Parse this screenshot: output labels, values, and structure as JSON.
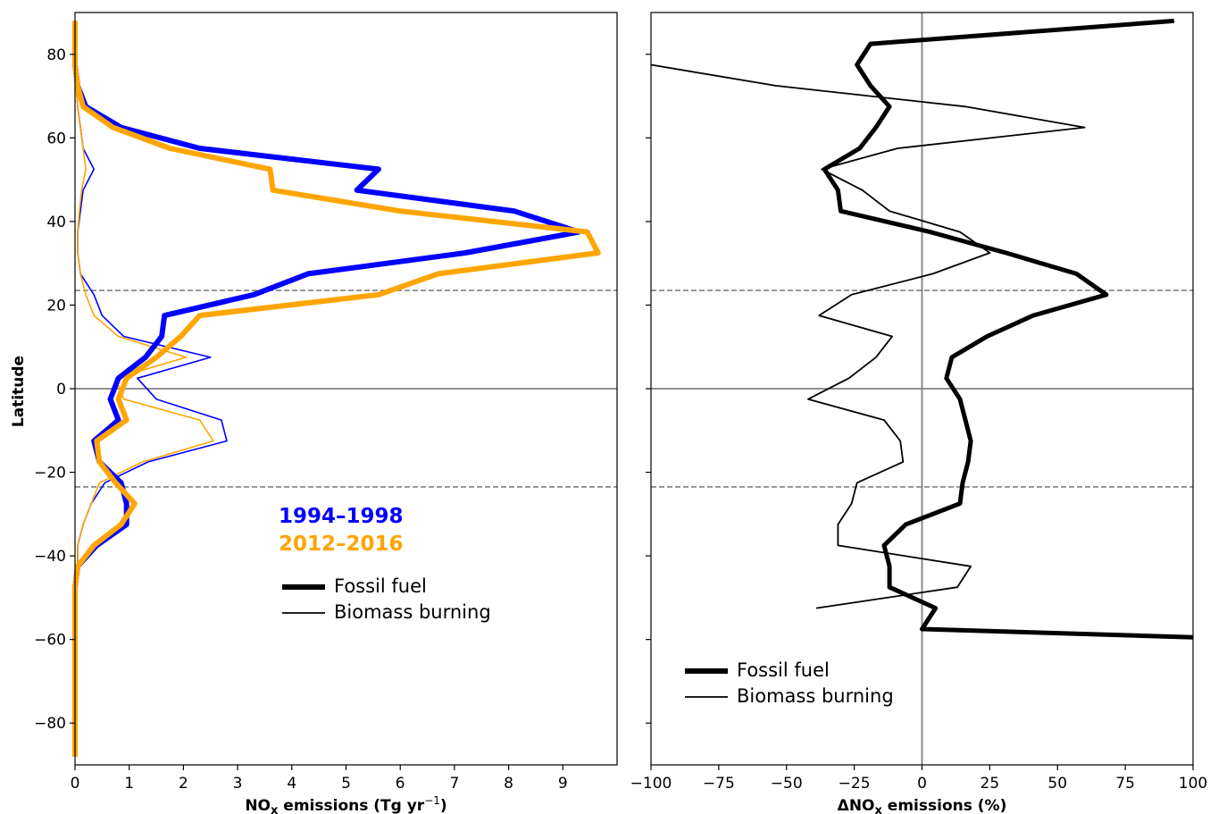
{
  "chart_data": [
    {
      "type": "line",
      "xlabel": "NO",
      "xlabel_sub": "x",
      "xlabel_rest": " emissions (Tg yr",
      "xlabel_sup": "−1",
      "xlabel_end": ")",
      "ylabel": "Latitude",
      "xlim": [
        0,
        10
      ],
      "ylim": [
        -90,
        90
      ],
      "xticks": [
        0,
        1,
        2,
        3,
        4,
        5,
        6,
        7,
        8,
        9
      ],
      "xtick_labels": [
        "0",
        "1",
        "2",
        "3",
        "4",
        "5",
        "6",
        "7",
        "8",
        "9"
      ],
      "yticks": [
        80,
        60,
        40,
        20,
        0,
        -20,
        -40,
        -60,
        -80
      ],
      "ytick_labels": [
        "80",
        "60",
        "40",
        "20",
        "0",
        "−20",
        "−40",
        "−60",
        "−80"
      ],
      "reference_lines": [
        {
          "y": 23.5,
          "style": "dashed"
        },
        {
          "y": -23.5,
          "style": "dashed"
        },
        {
          "y": 0,
          "style": "solid"
        }
      ],
      "period_labels": [
        {
          "text": "1994–1998",
          "color": "#0000ff"
        },
        {
          "text": "2012–2016",
          "color": "#ffa500"
        }
      ],
      "legend": [
        {
          "label": "Fossil fuel",
          "style": "thick"
        },
        {
          "label": "Biomass burning",
          "style": "thin"
        }
      ],
      "series": [
        {
          "period": "1994–1998",
          "sector": "Fossil fuel",
          "color": "#0000ff",
          "width": 6,
          "lat": [
            88,
            82.5,
            77.5,
            72.5,
            67.5,
            62.5,
            57.5,
            52.5,
            47.5,
            42.5,
            37.5,
            32.5,
            27.5,
            22.5,
            17.5,
            12.5,
            7.5,
            2.5,
            -2.5,
            -7.5,
            -12.5,
            -17.5,
            -22.5,
            -27.5,
            -32.5,
            -37.5,
            -42.5,
            -47.5,
            -52.5,
            -57.5,
            -62.5,
            -67.5,
            -72.5,
            -77.5,
            -82.5,
            -88
          ],
          "x": [
            0,
            0,
            0,
            0.05,
            0.2,
            0.85,
            2.3,
            5.6,
            5.2,
            8.1,
            9.3,
            7.2,
            4.3,
            3.3,
            1.65,
            1.6,
            1.3,
            0.8,
            0.65,
            0.8,
            0.35,
            0.45,
            0.85,
            0.95,
            0.95,
            0.4,
            0.05,
            0,
            0,
            0,
            0,
            0,
            0,
            0,
            0,
            0
          ]
        },
        {
          "period": "2012–2016",
          "sector": "Fossil fuel",
          "color": "#ffa500",
          "width": 6,
          "lat": [
            88,
            82.5,
            77.5,
            72.5,
            67.5,
            62.5,
            57.5,
            52.5,
            47.5,
            42.5,
            37.5,
            32.5,
            27.5,
            22.5,
            17.5,
            12.5,
            7.5,
            2.5,
            -2.5,
            -7.5,
            -12.5,
            -17.5,
            -22.5,
            -27.5,
            -32.5,
            -37.5,
            -42.5,
            -47.5,
            -52.5,
            -57.5,
            -62.5,
            -67.5,
            -72.5,
            -77.5,
            -82.5,
            -88
          ],
          "x": [
            0,
            0,
            0,
            0.05,
            0.15,
            0.7,
            1.75,
            3.6,
            3.65,
            6.0,
            9.45,
            9.65,
            6.7,
            5.6,
            2.3,
            1.95,
            1.5,
            0.95,
            0.8,
            0.95,
            0.4,
            0.45,
            0.75,
            1.1,
            0.85,
            0.35,
            0.05,
            0,
            0,
            0,
            0,
            0,
            0,
            0,
            0,
            0
          ]
        },
        {
          "period": "1994–1998",
          "sector": "Biomass burning",
          "color": "#0000ff",
          "width": 1.6,
          "lat": [
            72.5,
            67.5,
            62.5,
            57.5,
            52.5,
            47.5,
            42.5,
            37.5,
            32.5,
            27.5,
            22.5,
            17.5,
            12.5,
            7.5,
            2.5,
            -2.5,
            -7.5,
            -12.5,
            -17.5,
            -22.5,
            -27.5,
            -32.5,
            -37.5,
            -42.5,
            -47.5,
            -52.5
          ],
          "x": [
            0.02,
            0.05,
            0.1,
            0.15,
            0.35,
            0.15,
            0.1,
            0.05,
            0.05,
            0.1,
            0.35,
            0.5,
            0.9,
            2.5,
            1.15,
            1.5,
            2.7,
            2.8,
            1.35,
            0.55,
            0.3,
            0.15,
            0.05,
            0.05,
            0.02,
            0.01
          ]
        },
        {
          "period": "2012–2016",
          "sector": "Biomass burning",
          "color": "#ffa500",
          "width": 1.6,
          "lat": [
            72.5,
            67.5,
            62.5,
            57.5,
            52.5,
            47.5,
            42.5,
            37.5,
            32.5,
            27.5,
            22.5,
            17.5,
            12.5,
            7.5,
            2.5,
            -2.5,
            -7.5,
            -12.5,
            -17.5,
            -22.5,
            -27.5,
            -32.5,
            -37.5,
            -42.5,
            -47.5,
            -52.5
          ],
          "x": [
            0.02,
            0.05,
            0.1,
            0.15,
            0.2,
            0.12,
            0.08,
            0.05,
            0.05,
            0.1,
            0.2,
            0.35,
            0.8,
            2.05,
            0.75,
            0.9,
            2.3,
            2.55,
            1.25,
            0.45,
            0.3,
            0.15,
            0.05,
            0.05,
            0.02,
            0.01
          ]
        }
      ]
    },
    {
      "type": "line",
      "xlabel": "ΔNO",
      "xlabel_sub": "x",
      "xlabel_rest": " emissions (%)",
      "xlim": [
        -100,
        100
      ],
      "ylim": [
        -90,
        90
      ],
      "xticks": [
        -100,
        -75,
        -50,
        -25,
        0,
        25,
        50,
        75,
        100
      ],
      "xtick_labels": [
        "−100",
        "−75",
        "−50",
        "−25",
        "0",
        "25",
        "50",
        "75",
        "100"
      ],
      "reference_lines": [
        {
          "y": 23.5,
          "style": "dashed"
        },
        {
          "y": -23.5,
          "style": "dashed"
        },
        {
          "y": 0,
          "style": "solid"
        },
        {
          "x": 0,
          "style": "solid"
        }
      ],
      "legend": [
        {
          "label": "Fossil fuel",
          "style": "thick"
        },
        {
          "label": "Biomass burning",
          "style": "thin"
        }
      ],
      "series": [
        {
          "sector": "Fossil fuel",
          "color": "#000000",
          "width": 5,
          "lat": [
            88,
            82.5,
            77.5,
            72.5,
            67.5,
            62.5,
            57.5,
            52.5,
            47.5,
            42.5,
            37.5,
            32.5,
            27.5,
            22.5,
            17.5,
            12.5,
            7.5,
            2.5,
            -2.5,
            -7.5,
            -12.5,
            -17.5,
            -22.5,
            -27.5,
            -32.5,
            -37.5,
            -42.5,
            -47.5,
            -52.5,
            -57.5,
            -59.5
          ],
          "x": [
            93,
            -19,
            -24,
            -19,
            -12,
            -17,
            -23,
            -36,
            -31,
            -30,
            3,
            31,
            57,
            68,
            41,
            24,
            11,
            9,
            14,
            16,
            18,
            17,
            15,
            14,
            -6,
            -14,
            -12,
            -12,
            5,
            0,
            100
          ]
        },
        {
          "sector": "Biomass burning",
          "color": "#000000",
          "width": 1.8,
          "lat": [
            77.5,
            72.5,
            67.5,
            62.5,
            57.5,
            52.5,
            47.5,
            42.5,
            37.5,
            32.5,
            27.5,
            22.5,
            17.5,
            12.5,
            7.5,
            2.5,
            -2.5,
            -7.5,
            -12.5,
            -17.5,
            -22.5,
            -27.5,
            -32.5,
            -37.5,
            -42.5,
            -47.5,
            -52.5
          ],
          "x": [
            -100,
            -54,
            16,
            60,
            -9,
            -37,
            -22,
            -12,
            14,
            25,
            4,
            -26,
            -38,
            -11,
            -17,
            -27,
            -42,
            -14,
            -8,
            -7,
            -24,
            -26,
            -31,
            -31,
            18,
            13,
            -39
          ]
        }
      ]
    }
  ]
}
